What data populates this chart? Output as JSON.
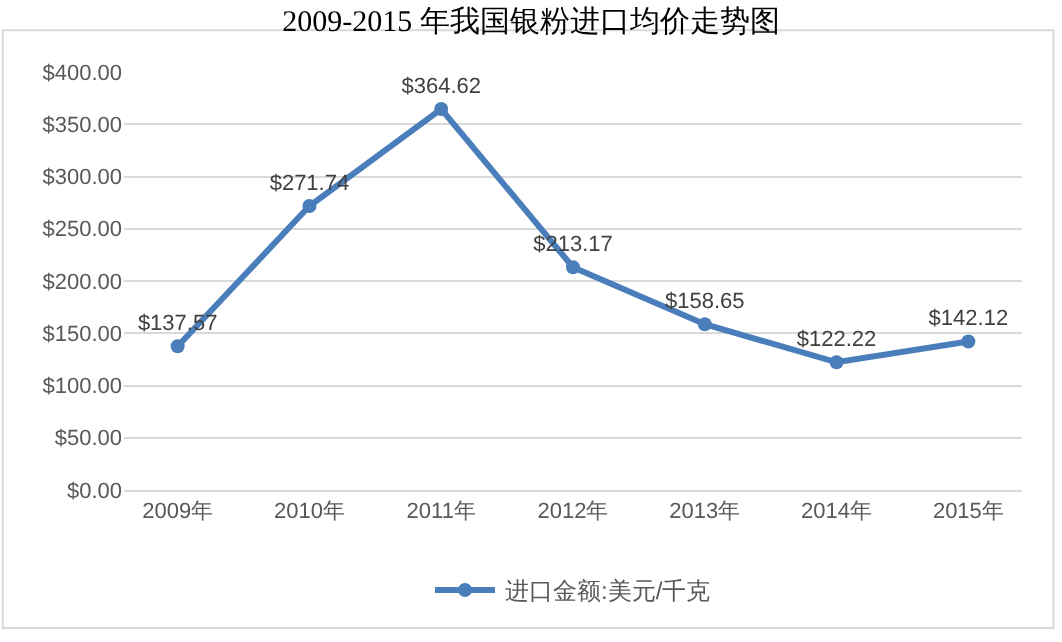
{
  "chart_data": {
    "type": "line",
    "title": "2009-2015 年我国银粉进口均价走势图",
    "categories": [
      "2009年",
      "2010年",
      "2011年",
      "2012年",
      "2013年",
      "2014年",
      "2015年"
    ],
    "series": [
      {
        "name": "进口金额:美元/千克",
        "color": "#4a7ebb",
        "values": [
          137.57,
          271.74,
          364.62,
          213.17,
          158.65,
          122.22,
          142.12
        ],
        "value_labels": [
          "$137.57",
          "$271.74",
          "$364.62",
          "$213.17",
          "$158.65",
          "$122.22",
          "$142.12"
        ]
      }
    ],
    "ylim": [
      0,
      400
    ],
    "yticks": [
      {
        "value": 0,
        "label": "$0.00"
      },
      {
        "value": 50,
        "label": "$50.00"
      },
      {
        "value": 100,
        "label": "$100.00"
      },
      {
        "value": 150,
        "label": "$150.00"
      },
      {
        "value": 200,
        "label": "$200.00"
      },
      {
        "value": 250,
        "label": "$250.00"
      },
      {
        "value": 300,
        "label": "$300.00"
      },
      {
        "value": 350,
        "label": "$350.00"
      },
      {
        "value": 400,
        "label": "$400.00"
      }
    ],
    "grid": "y",
    "legend": "bottom",
    "marker": "circle",
    "line_style": "solid"
  }
}
